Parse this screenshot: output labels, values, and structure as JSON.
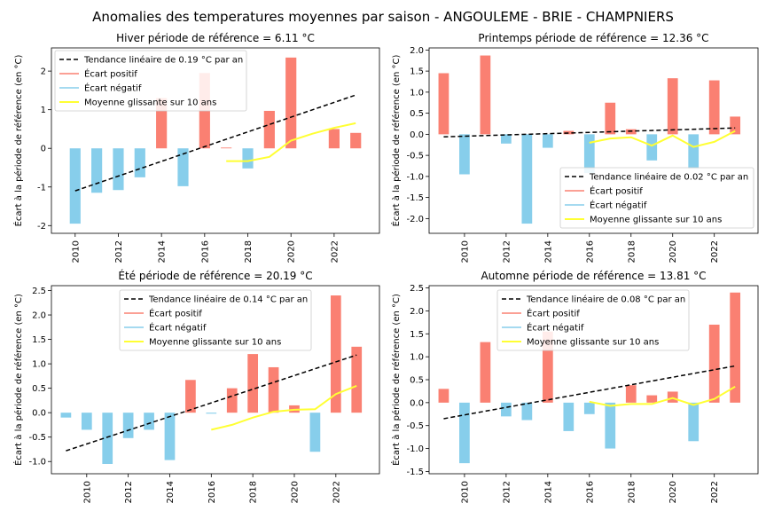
{
  "suptitle": "Anomalies des temperatures moyennes par saison - ANGOULEME - BRIE - CHAMPNIERS",
  "colors": {
    "positive": "#fa8072",
    "negative": "#87ceeb",
    "trend": "#000000",
    "moving": "#ffff33",
    "frame": "#000000"
  },
  "chart_data": [
    {
      "type": "bar",
      "title": "Hiver période de référence = 6.11 °C",
      "ylabel": "Écart à la période de référence (en °C)",
      "xlim": [
        2008.9,
        2024.1
      ],
      "ylim": [
        -2.2,
        2.6
      ],
      "xticks": [
        2010,
        2012,
        2014,
        2016,
        2018,
        2020,
        2022
      ],
      "yticks": [
        -2,
        -1,
        0,
        1,
        2
      ],
      "legend_position": "upper-left",
      "legend": {
        "trend": "Tendance linéaire de 0.19 °C par an",
        "pos": "Écart positif",
        "neg": "Écart négatif",
        "ma": "Moyenne glissante sur 10 ans"
      },
      "x": [
        2010,
        2011,
        2012,
        2013,
        2014,
        2015,
        2016,
        2017,
        2018,
        2019,
        2020,
        2021,
        2022,
        2023
      ],
      "values": [
        -1.95,
        -1.15,
        -1.08,
        -0.75,
        1.3,
        -0.98,
        1.95,
        0.02,
        -0.52,
        0.97,
        2.35,
        null,
        0.5,
        0.4
      ],
      "trend": {
        "x": [
          2010,
          2023
        ],
        "y": [
          -1.1,
          1.38
        ]
      },
      "moving_average": {
        "x": [
          2017,
          2018,
          2019,
          2020,
          2021,
          2022,
          2023
        ],
        "y": [
          -0.33,
          -0.33,
          -0.22,
          0.2,
          0.38,
          0.53,
          0.65
        ]
      }
    },
    {
      "type": "bar",
      "title": "Printemps période de référence = 12.36 °C",
      "ylabel": "Écart à la période de référence (en °C)",
      "xlim": [
        2008.3,
        2024.1
      ],
      "ylim": [
        -2.35,
        2.05
      ],
      "xticks": [
        2010,
        2012,
        2014,
        2016,
        2018,
        2020,
        2022
      ],
      "yticks": [
        -2.0,
        -1.5,
        -1.0,
        -0.5,
        0.0,
        0.5,
        1.0,
        1.5,
        2.0
      ],
      "legend_position": "lower-right",
      "legend": {
        "trend": "Tendance linéaire de 0.02 °C par an",
        "pos": "Écart positif",
        "neg": "Écart négatif",
        "ma": "Moyenne glissante sur 10 ans"
      },
      "x": [
        2009,
        2010,
        2011,
        2012,
        2013,
        2014,
        2015,
        2016,
        2017,
        2018,
        2019,
        2020,
        2021,
        2022,
        2023
      ],
      "values": [
        1.45,
        -0.95,
        1.87,
        -0.22,
        -2.12,
        -0.32,
        0.08,
        -0.92,
        0.75,
        0.12,
        -0.62,
        1.33,
        -0.82,
        1.28,
        0.42
      ],
      "trend": {
        "x": [
          2009,
          2023
        ],
        "y": [
          -0.06,
          0.15
        ]
      },
      "moving_average": {
        "x": [
          2016,
          2017,
          2018,
          2019,
          2020,
          2021,
          2022,
          2023
        ],
        "y": [
          -0.2,
          -0.1,
          -0.07,
          -0.27,
          -0.03,
          -0.3,
          -0.18,
          0.08
        ]
      }
    },
    {
      "type": "bar",
      "title": "Été période de référence = 20.19 °C",
      "ylabel": "Écart à la période de référence (en °C)",
      "xlim": [
        2008.3,
        2024.1
      ],
      "ylim": [
        -1.25,
        2.6
      ],
      "xticks": [
        2010,
        2012,
        2014,
        2016,
        2018,
        2020,
        2022
      ],
      "yticks": [
        -1.0,
        -0.5,
        0.0,
        0.5,
        1.0,
        1.5,
        2.0,
        2.5
      ],
      "legend_position": "upper-center",
      "legend": {
        "trend": "Tendance linéaire de 0.14 °C par an",
        "pos": "Écart positif",
        "neg": "Écart négatif",
        "ma": "Moyenne glissante sur 10 ans"
      },
      "x": [
        2009,
        2010,
        2011,
        2012,
        2013,
        2014,
        2015,
        2016,
        2017,
        2018,
        2019,
        2020,
        2021,
        2022,
        2023
      ],
      "values": [
        -0.1,
        -0.35,
        -1.05,
        -0.52,
        -0.35,
        -0.97,
        0.67,
        -0.02,
        0.5,
        1.2,
        0.93,
        0.15,
        -0.8,
        2.4,
        1.35
      ],
      "trend": {
        "x": [
          2009,
          2023
        ],
        "y": [
          -0.78,
          1.18
        ]
      },
      "moving_average": {
        "x": [
          2016,
          2017,
          2018,
          2019,
          2020,
          2021,
          2022,
          2023
        ],
        "y": [
          -0.35,
          -0.25,
          -0.1,
          0.02,
          0.06,
          0.07,
          0.38,
          0.55
        ]
      }
    },
    {
      "type": "bar",
      "title": "Automne période de référence = 13.81 °C",
      "ylabel": "Écart à la période de référence (en °C)",
      "xlim": [
        2008.3,
        2024.1
      ],
      "ylim": [
        -1.55,
        2.55
      ],
      "xticks": [
        2010,
        2012,
        2014,
        2016,
        2018,
        2020,
        2022
      ],
      "yticks": [
        -1.5,
        -1.0,
        -0.5,
        0.0,
        0.5,
        1.0,
        1.5,
        2.0,
        2.5
      ],
      "legend_position": "upper-center",
      "legend": {
        "trend": "Tendance linéaire de 0.08 °C par an",
        "pos": "Écart positif",
        "neg": "Écart négatif",
        "ma": "Moyenne glissante sur 10 ans"
      },
      "x": [
        2009,
        2010,
        2011,
        2012,
        2013,
        2014,
        2015,
        2016,
        2017,
        2018,
        2019,
        2020,
        2021,
        2022,
        2023
      ],
      "values": [
        0.3,
        -1.32,
        1.32,
        -0.3,
        -0.38,
        1.55,
        -0.62,
        -0.25,
        -1.0,
        0.38,
        0.16,
        0.24,
        -0.84,
        1.7,
        2.4
      ],
      "trend": {
        "x": [
          2009,
          2023
        ],
        "y": [
          -0.35,
          0.8
        ]
      },
      "moving_average": {
        "x": [
          2016,
          2017,
          2018,
          2019,
          2020,
          2021,
          2022,
          2023
        ],
        "y": [
          0.02,
          -0.07,
          -0.03,
          -0.03,
          0.1,
          -0.05,
          0.08,
          0.35
        ]
      }
    }
  ]
}
